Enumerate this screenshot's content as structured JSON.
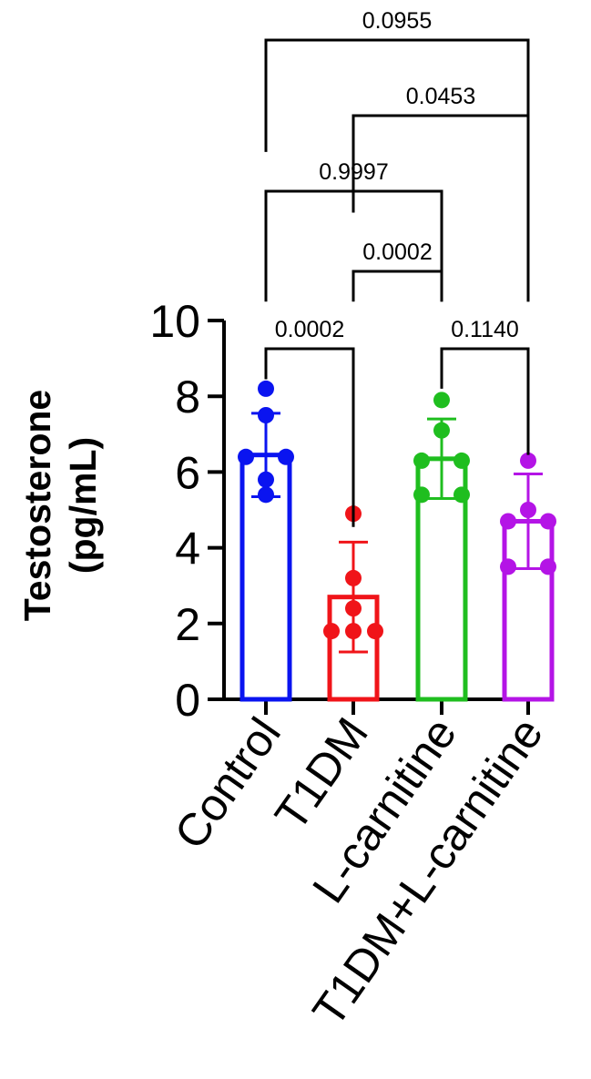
{
  "chart_data": {
    "type": "bar",
    "ylabel": [
      "Testosterone",
      "(pg/mL)"
    ],
    "ylim": [
      0,
      10
    ],
    "yticks": [
      "0",
      "2",
      "4",
      "6",
      "8",
      "10"
    ],
    "categories": [
      "Control",
      "T1DM",
      "L-carnitine",
      "T1DM+L-carnitine"
    ],
    "colors": [
      "#0a14f0",
      "#f01419",
      "#1fbe1f",
      "#b414e6"
    ],
    "means": [
      6.45,
      2.7,
      6.35,
      4.7
    ],
    "sd": [
      1.1,
      1.45,
      1.05,
      1.25
    ],
    "points": [
      [
        8.2,
        7.5,
        6.4,
        6.4,
        5.8,
        5.4
      ],
      [
        4.9,
        3.2,
        2.4,
        1.8,
        1.8,
        1.8
      ],
      [
        7.9,
        7.1,
        6.3,
        6.3,
        5.4,
        5.4
      ],
      [
        6.3,
        5.0,
        4.7,
        4.7,
        3.5,
        3.5
      ]
    ],
    "comparisons": [
      {
        "from": 0,
        "to": 1,
        "p": "0.0002"
      },
      {
        "from": 2,
        "to": 3,
        "p": "0.1140"
      },
      {
        "from": 1,
        "to": 2,
        "p": "0.0002"
      },
      {
        "from": 0,
        "to": 2,
        "p": "0.9997"
      },
      {
        "from": 1,
        "to": 3,
        "p": "0.0453"
      },
      {
        "from": 0,
        "to": 3,
        "p": "0.0955"
      }
    ],
    "grid": false,
    "legend": "none"
  }
}
